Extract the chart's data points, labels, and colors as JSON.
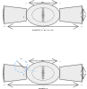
{
  "line_color": "#666666",
  "dim_color": "#444444",
  "light_blue": "#99ccff",
  "fill_light": "#e8e8e8",
  "bg": "#ffffff",
  "lw": 0.35,
  "lw_dim": 0.3,
  "lw_blue": 0.5
}
